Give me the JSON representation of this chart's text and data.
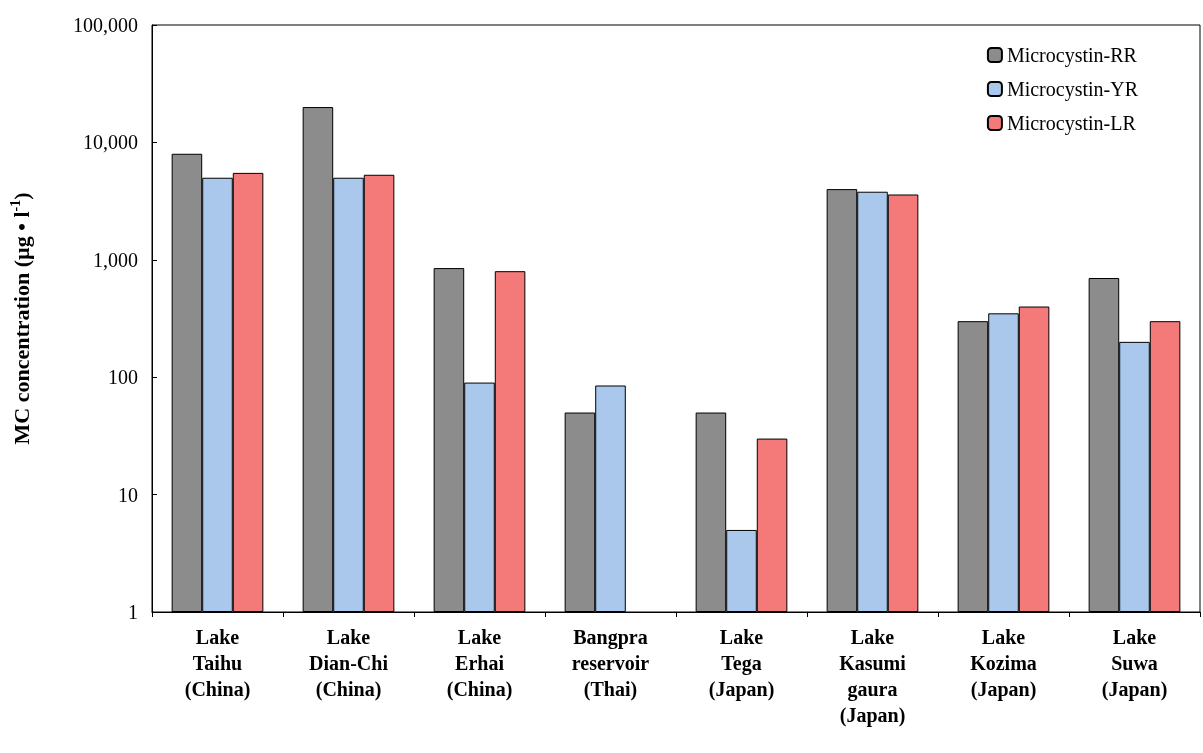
{
  "chart_data": {
    "type": "bar",
    "ylabel": "MC concentration (µg • l$^{-1}$)",
    "categories": [
      "Lake\nTaihu\n(China)",
      "Lake\nDian-Chi\n(China)",
      "Lake\nErhai\n(China)",
      "Bangpra\nreservoir\n(Thai)",
      "Lake\nTega\n(Japan)",
      "Lake\nKasumi\ngaura\n(Japan)",
      "Lake\nKozima\n(Japan)",
      "Lake\nSuwa\n(Japan)"
    ],
    "series": [
      {
        "name": "Microcystin-RR",
        "color": "#8c8c8c",
        "values": [
          8000,
          20000,
          850,
          50,
          50,
          4000,
          300,
          700
        ]
      },
      {
        "name": "Microcystin-YR",
        "color": "#a9c8ec",
        "values": [
          5000,
          5000,
          90,
          85,
          5,
          3800,
          350,
          200
        ]
      },
      {
        "name": "Microcystin-LR",
        "color": "#f47a7a",
        "values": [
          5500,
          5300,
          800,
          null,
          30,
          3600,
          400,
          300
        ]
      }
    ],
    "log": "y",
    "ylim": [
      1,
      100000
    ],
    "yticks": [
      1,
      10,
      100,
      {
        "value": 1000,
        "label": "1,000"
      },
      {
        "value": 10000,
        "label": "10,000"
      },
      {
        "value": 100000,
        "label": "100,000"
      }
    ],
    "legend": "top right",
    "grid": false
  }
}
